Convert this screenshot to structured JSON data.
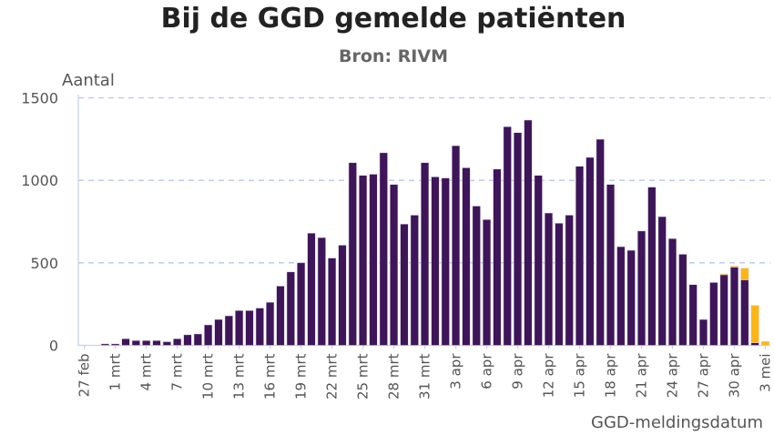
{
  "chart_data": {
    "type": "bar",
    "stacked": true,
    "title": "Bij de GGD gemelde patiënten",
    "subtitle": "Bron: RIVM",
    "ylabel": "Aantal",
    "xlabel": "GGD-meldingsdatum",
    "ylim": [
      0,
      1500
    ],
    "yticks": [
      0,
      500,
      1000,
      1500
    ],
    "grid": "horizontal dashed",
    "legend": "none",
    "categories": [
      "27 feb",
      "28 feb",
      "29 feb",
      "1 mrt",
      "2 mrt",
      "3 mrt",
      "4 mrt",
      "5 mrt",
      "6 mrt",
      "7 mrt",
      "8 mrt",
      "9 mrt",
      "10 mrt",
      "11 mrt",
      "12 mrt",
      "13 mrt",
      "14 mrt",
      "15 mrt",
      "16 mrt",
      "17 mrt",
      "18 mrt",
      "19 mrt",
      "20 mrt",
      "21 mrt",
      "22 mrt",
      "23 mrt",
      "24 mrt",
      "25 mrt",
      "26 mrt",
      "27 mrt",
      "28 mrt",
      "29 mrt",
      "30 mrt",
      "31 mrt",
      "1 apr",
      "2 apr",
      "3 apr",
      "4 apr",
      "5 apr",
      "6 apr",
      "7 apr",
      "8 apr",
      "9 apr",
      "10 apr",
      "11 apr",
      "12 apr",
      "13 apr",
      "14 apr",
      "15 apr",
      "16 apr",
      "17 apr",
      "18 apr",
      "19 apr",
      "20 apr",
      "21 apr",
      "22 apr",
      "23 apr",
      "24 apr",
      "25 apr",
      "26 apr",
      "27 apr",
      "28 apr",
      "29 apr",
      "30 apr",
      "1 mei",
      "2 mei",
      "3 mei"
    ],
    "x_tick_labels": [
      "27 feb",
      "1 mrt",
      "4 mrt",
      "7 mrt",
      "10 mrt",
      "13 mrt",
      "16 mrt",
      "19 mrt",
      "22 mrt",
      "25 mrt",
      "28 mrt",
      "31 mrt",
      "3 apr",
      "6 apr",
      "9 apr",
      "12 apr",
      "15 apr",
      "18 apr",
      "21 apr",
      "24 apr",
      "27 apr",
      "30 apr",
      "3 mei"
    ],
    "series": [
      {
        "color": "#3d1558",
        "values": [
          0,
          0,
          9,
          9,
          40,
          29,
          29,
          29,
          22,
          40,
          64,
          69,
          124,
          157,
          179,
          211,
          211,
          226,
          261,
          359,
          445,
          500,
          680,
          653,
          529,
          607,
          1107,
          1030,
          1037,
          1167,
          975,
          735,
          789,
          1107,
          1021,
          1014,
          1210,
          1076,
          844,
          762,
          1068,
          1325,
          1289,
          1365,
          1030,
          802,
          740,
          789,
          1085,
          1139,
          1249,
          975,
          598,
          576,
          693,
          959,
          780,
          647,
          552,
          368,
          157,
          381,
          428,
          474,
          397,
          16,
          0
        ]
      },
      {
        "color": "#ffb612",
        "values": [
          0,
          0,
          0,
          0,
          0,
          0,
          0,
          0,
          0,
          0,
          0,
          0,
          0,
          0,
          0,
          0,
          0,
          0,
          0,
          0,
          0,
          0,
          0,
          0,
          0,
          0,
          0,
          0,
          0,
          0,
          0,
          0,
          0,
          0,
          0,
          0,
          0,
          0,
          0,
          0,
          0,
          0,
          0,
          0,
          0,
          0,
          0,
          0,
          0,
          0,
          0,
          0,
          0,
          0,
          0,
          0,
          0,
          0,
          0,
          0,
          0,
          0,
          5,
          7,
          71,
          226,
          24
        ]
      }
    ],
    "gridline_color": "#b8c8e0",
    "axis_color": "#c5d3e8"
  }
}
